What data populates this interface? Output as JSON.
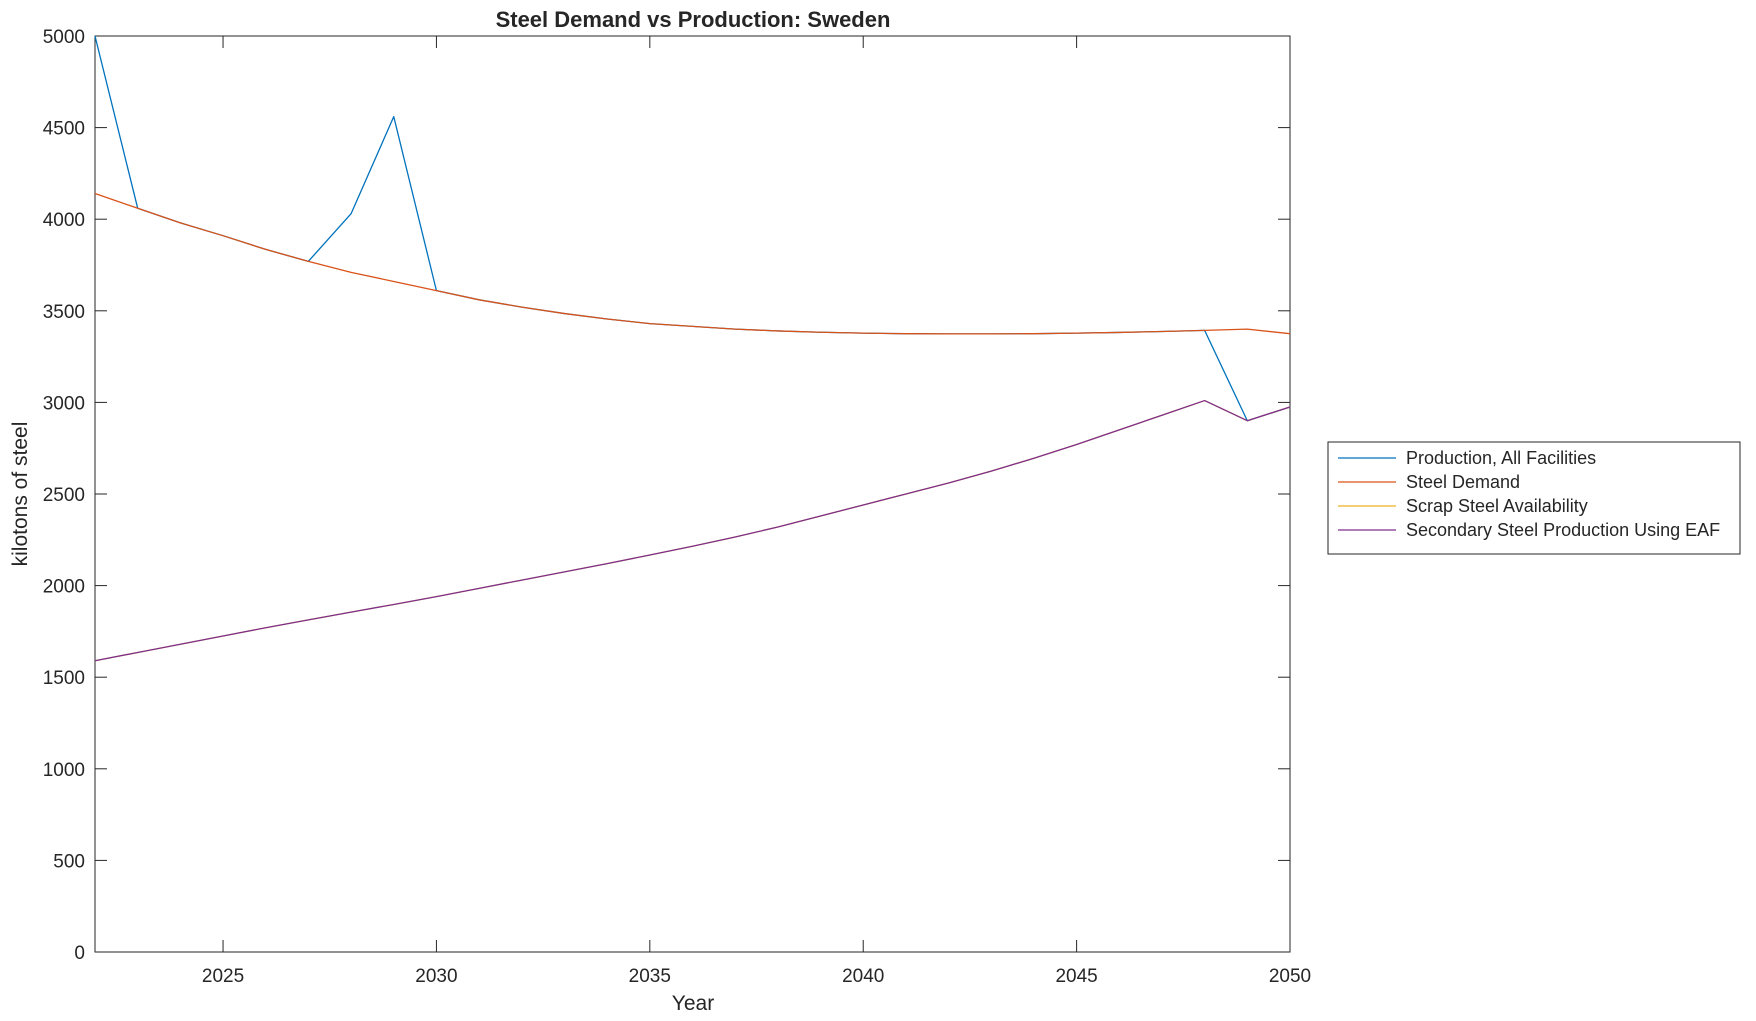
{
  "chart_data": {
    "type": "line",
    "title": "Steel Demand vs Production: Sweden",
    "xlabel": "Year",
    "ylabel": "kilotons of steel",
    "xlim": [
      2022,
      2050
    ],
    "ylim": [
      0,
      5000
    ],
    "x_ticks": [
      2025,
      2030,
      2035,
      2040,
      2045,
      2050
    ],
    "y_ticks": [
      0,
      500,
      1000,
      1500,
      2000,
      2500,
      3000,
      3500,
      4000,
      4500,
      5000
    ],
    "grid": false,
    "legend_position": "outside-right",
    "x": [
      2022,
      2023,
      2024,
      2025,
      2026,
      2027,
      2028,
      2029,
      2030,
      2031,
      2032,
      2033,
      2034,
      2035,
      2036,
      2037,
      2038,
      2039,
      2040,
      2041,
      2042,
      2043,
      2044,
      2045,
      2046,
      2047,
      2048,
      2049,
      2050
    ],
    "series": [
      {
        "name": "Production, All Facilities",
        "color": "#0072BD",
        "values": [
          5000,
          4060,
          3980,
          3910,
          3835,
          3770,
          4030,
          4560,
          3610,
          3560,
          3520,
          3485,
          3455,
          3430,
          3415,
          3400,
          3390,
          3383,
          3378,
          3375,
          3374,
          3374,
          3375,
          3378,
          3382,
          3387,
          3393,
          2900,
          2975
        ]
      },
      {
        "name": "Steel Demand",
        "color": "#D95319",
        "values": [
          4140,
          4060,
          3980,
          3910,
          3835,
          3770,
          3710,
          3660,
          3610,
          3560,
          3520,
          3485,
          3455,
          3430,
          3415,
          3400,
          3390,
          3383,
          3378,
          3375,
          3374,
          3374,
          3375,
          3378,
          3382,
          3387,
          3393,
          3400,
          3375
        ]
      },
      {
        "name": "Scrap Steel Availability",
        "color": "#EDB120",
        "values": [
          1590,
          1635,
          1680,
          1725,
          1770,
          1813,
          1855,
          1897,
          1940,
          1985,
          2030,
          2075,
          2120,
          2167,
          2215,
          2265,
          2320,
          2380,
          2440,
          2500,
          2560,
          2625,
          2695,
          2770,
          2850,
          2930,
          3010,
          2900,
          2975
        ]
      },
      {
        "name": "Secondary Steel Production Using EAF",
        "color": "#7E2F8E",
        "values": [
          1590,
          1635,
          1680,
          1725,
          1770,
          1813,
          1855,
          1897,
          1940,
          1985,
          2030,
          2075,
          2120,
          2167,
          2215,
          2265,
          2320,
          2380,
          2440,
          2500,
          2560,
          2625,
          2695,
          2770,
          2850,
          2930,
          3010,
          2900,
          2975
        ]
      }
    ]
  }
}
